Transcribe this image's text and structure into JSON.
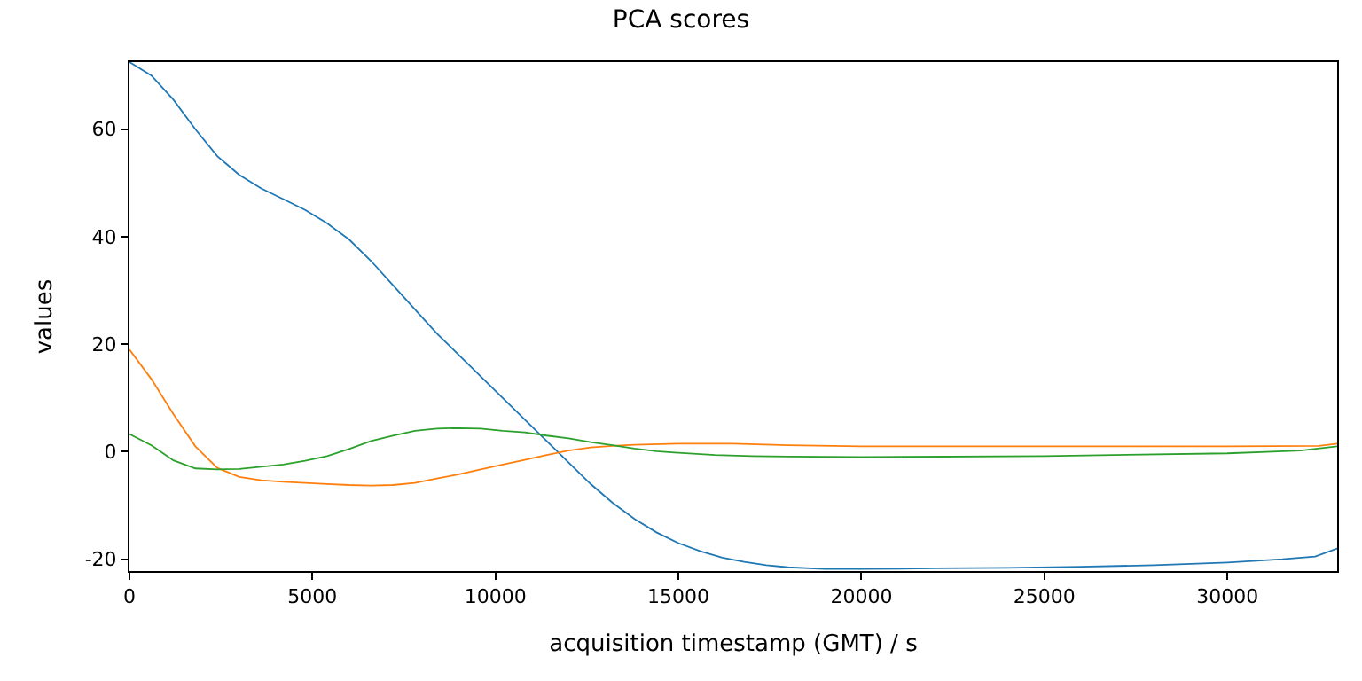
{
  "chart_data": {
    "type": "line",
    "title": "PCA scores",
    "xlabel": "acquisition timestamp (GMT) / s",
    "ylabel": "values",
    "xlim": [
      0,
      33000
    ],
    "ylim": [
      -22.2,
      72.5
    ],
    "xticks": [
      0,
      5000,
      10000,
      15000,
      20000,
      25000,
      30000
    ],
    "yticks": [
      -20,
      0,
      20,
      40,
      60
    ],
    "marker": "none",
    "line_style": "solid",
    "series": [
      {
        "color": "#1f77b4",
        "x": [
          0,
          600,
          1200,
          1800,
          2400,
          3000,
          3600,
          4200,
          4800,
          5400,
          6000,
          6600,
          7200,
          7800,
          8400,
          9000,
          9600,
          10200,
          10800,
          11400,
          12000,
          12600,
          13200,
          13800,
          14400,
          15000,
          15600,
          16200,
          16800,
          17400,
          18000,
          19000,
          20000,
          22000,
          24000,
          26000,
          28000,
          30000,
          31500,
          32400,
          33000
        ],
        "values": [
          72.5,
          70,
          65.5,
          60,
          55,
          51.5,
          49,
          47,
          45,
          42.5,
          39.5,
          35.5,
          31,
          26.5,
          22,
          18,
          14,
          10,
          6,
          2,
          -2,
          -6,
          -9.5,
          -12.5,
          -15,
          -17,
          -18.5,
          -19.7,
          -20.5,
          -21.1,
          -21.5,
          -21.8,
          -21.8,
          -21.7,
          -21.6,
          -21.4,
          -21.1,
          -20.6,
          -20,
          -19.5,
          -18
        ]
      },
      {
        "color": "#ff7f0e",
        "x": [
          0,
          600,
          1200,
          1800,
          2400,
          3000,
          3600,
          4200,
          4800,
          5400,
          6000,
          6600,
          7200,
          7800,
          8400,
          9000,
          9600,
          10200,
          10800,
          11400,
          12000,
          12600,
          13200,
          13800,
          15000,
          16500,
          18000,
          20000,
          25000,
          30000,
          32500,
          33000
        ],
        "values": [
          19,
          13.5,
          7,
          1,
          -3,
          -4.7,
          -5.3,
          -5.6,
          -5.8,
          -6,
          -6.2,
          -6.3,
          -6.2,
          -5.8,
          -5,
          -4.2,
          -3.3,
          -2.4,
          -1.5,
          -0.6,
          0.2,
          0.8,
          1.1,
          1.3,
          1.5,
          1.5,
          1.2,
          1.0,
          1.0,
          1.0,
          1.1,
          1.5
        ]
      },
      {
        "color": "#2ca02c",
        "x": [
          0,
          600,
          1200,
          1800,
          2400,
          3000,
          3600,
          4200,
          4800,
          5400,
          6000,
          6600,
          7200,
          7800,
          8400,
          9000,
          9600,
          10200,
          10800,
          11400,
          12000,
          12600,
          13200,
          13800,
          14400,
          15000,
          16000,
          17000,
          18000,
          20000,
          25000,
          30000,
          32000,
          33000
        ],
        "values": [
          3.3,
          1.2,
          -1.6,
          -3.1,
          -3.3,
          -3.2,
          -2.8,
          -2.4,
          -1.7,
          -0.8,
          0.5,
          2,
          3,
          3.9,
          4.3,
          4.4,
          4.3,
          3.9,
          3.6,
          3,
          2.5,
          1.8,
          1.2,
          0.6,
          0.1,
          -0.2,
          -0.6,
          -0.8,
          -0.9,
          -1.0,
          -0.8,
          -0.3,
          0.2,
          1.0
        ]
      }
    ]
  }
}
